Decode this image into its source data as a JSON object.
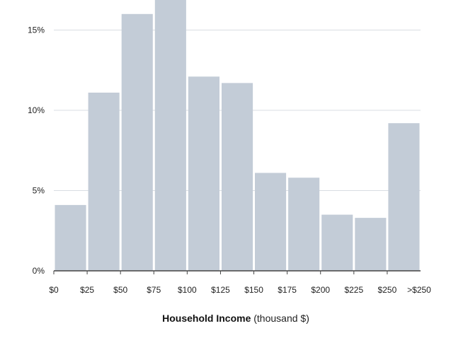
{
  "chart_data": {
    "type": "bar",
    "categories": [
      "$0-$25",
      "$25-$50",
      "$50-$75",
      "$75-$100",
      "$100-$125",
      "$125-$150",
      "$150-$175",
      "$175-$200",
      "$200-$225",
      "$225-$250",
      ">$250"
    ],
    "values": [
      4.1,
      11.1,
      16.0,
      17.3,
      12.1,
      11.7,
      6.1,
      5.8,
      3.5,
      3.3,
      9.2
    ],
    "x_tick_labels": [
      "$0",
      "$25",
      "$50",
      "$75",
      "$100",
      "$125",
      "$150",
      "$175",
      "$200",
      "$225",
      "$250",
      ">$250"
    ],
    "y_ticks": [
      0,
      5,
      10,
      15
    ],
    "y_tick_labels": [
      "0%",
      "5%",
      "10%",
      "15%"
    ],
    "ylim": [
      0,
      16.8
    ],
    "xlabel_bold": "Household Income",
    "xlabel_rest": " (thousand $)",
    "grid": true,
    "bar_color": "#c3ccd7",
    "grid_color": "#d9dde3",
    "axis_color": "#444444"
  }
}
